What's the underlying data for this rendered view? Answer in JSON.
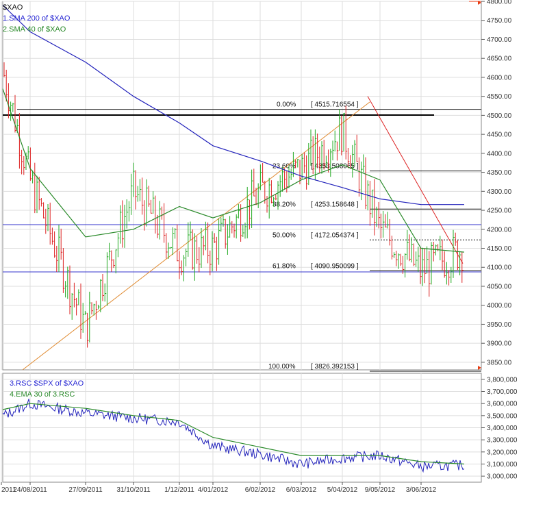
{
  "colors": {
    "price_up": "#22aa22",
    "price_down": "#dd2222",
    "sma200": "#2222bb",
    "sma40": "#2a8a2a",
    "rsc": "#2222bb",
    "ema30": "#2a8a2a",
    "trendline": "#e08a30",
    "downtrend": "#dd2222",
    "grid": "#dddddd",
    "last_marker": "#e83a10"
  },
  "upper": {
    "symbol": "$XAO",
    "legend1": "1.SMA 200  of $XAO",
    "legend2": "2.SMA 40  of $XAO",
    "yticks": [
      "3850.00",
      "3900.00",
      "3950.00",
      "4000.00",
      "4050.00",
      "4100.00",
      "4150.00",
      "4200.00",
      "4250.00",
      "4300.00",
      "4350.00",
      "4400.00",
      "4450.00",
      "4500.00",
      "4550.00",
      "4600.00",
      "4650.00",
      "4700.00",
      "4750.00",
      "4800.00"
    ],
    "fib_levels": [
      {
        "pct": "0.00%",
        "value": "[ 4515.716554 ]",
        "level": 4515.716554
      },
      {
        "pct": "23.60%",
        "value": "[ 4353.508065 ]",
        "level": 4353.508065
      },
      {
        "pct": "38.20%",
        "value": "[ 4253.158648 ]",
        "level": 4253.158648
      },
      {
        "pct": "50.00%",
        "value": "[ 4172.054374 ]",
        "level": 4172.054374
      },
      {
        "pct": "61.80%",
        "value": "[ 4090.950099 ]",
        "level": 4090.950099
      },
      {
        "pct": "100.00%",
        "value": "[ 3826.392153 ]",
        "level": 3826.392153
      }
    ]
  },
  "lower": {
    "legend1": "3.RSC  $SPX of $XAO",
    "legend2": "4.EMA 30  of 3.RSC",
    "yticks": [
      "3,000,000",
      "3,100,000",
      "3,200,000",
      "3,300,000",
      "3,400,000",
      "3,500,000",
      "3,600,000",
      "3,700,000",
      "3,800,000"
    ]
  },
  "xaxis": {
    "ticks": [
      "2011",
      "24/08/2011",
      "27/09/2011",
      "31/10/2011",
      "1/12/2011",
      "4/01/2012",
      "6/02/2012",
      "6/03/2012",
      "5/04/2012",
      "9/05/2012",
      "3/06/2012"
    ]
  },
  "chart_data": {
    "type": "line",
    "title": "$XAO",
    "price_ylim": [
      3830,
      4800
    ],
    "rsc_ylim": [
      2950000,
      3850000
    ],
    "dates": [
      "2011-08-01",
      "2011-08-24",
      "2011-09-27",
      "2011-10-31",
      "2011-12-01",
      "2012-01-04",
      "2012-02-06",
      "2012-03-06",
      "2012-04-05",
      "2012-05-09",
      "2012-06-03",
      "2012-06-25"
    ],
    "series": [
      {
        "name": "$XAO",
        "values": [
          4620,
          4330,
          3940,
          4300,
          4140,
          4150,
          4300,
          4360,
          4460,
          4200,
          4090,
          4150
        ]
      },
      {
        "name": "1.SMA 200  of $XAO",
        "values": [
          4790,
          4720,
          4640,
          4550,
          4480,
          4420,
          4380,
          4340,
          4310,
          4280,
          4265,
          4265
        ]
      },
      {
        "name": "2.SMA 40  of $XAO",
        "values": [
          4570,
          4360,
          4180,
          4200,
          4260,
          4230,
          4270,
          4330,
          4370,
          4330,
          4150,
          4140
        ]
      },
      {
        "name": "3.RSC  $SPX of $XAO",
        "values": [
          3500000,
          3600000,
          3520000,
          3480000,
          3450000,
          3250000,
          3180000,
          3100000,
          3150000,
          3170000,
          3080000,
          3090000
        ]
      },
      {
        "name": "4.EMA 30  of 3.RSC",
        "values": [
          3550000,
          3600000,
          3560000,
          3500000,
          3460000,
          3320000,
          3240000,
          3170000,
          3170000,
          3170000,
          3120000,
          3100000
        ]
      }
    ]
  }
}
